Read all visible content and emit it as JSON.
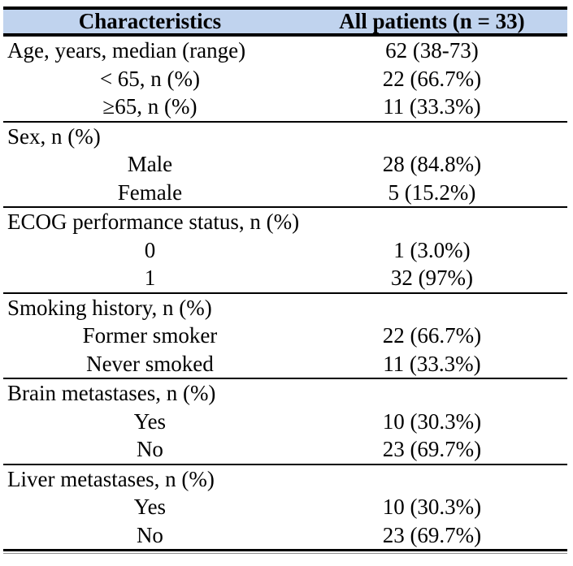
{
  "table": {
    "columns": [
      "Characteristics",
      "All patients (n = 33)"
    ],
    "rows": [
      {
        "label": "Age, years, median (range)",
        "value": "62 (38-73)"
      },
      {
        "label": "< 65, n (%)",
        "value": "22 (66.7%)"
      },
      {
        "label": "≥65, n (%)",
        "value": "11 (33.3%)"
      },
      {
        "label": "Sex, n (%)",
        "value": ""
      },
      {
        "label": "Male",
        "value": "28 (84.8%)"
      },
      {
        "label": "Female",
        "value": "5 (15.2%)"
      },
      {
        "label": "ECOG performance status, n (%)",
        "value": ""
      },
      {
        "label": "0",
        "value": "1 (3.0%)"
      },
      {
        "label": "1",
        "value": "32 (97%)"
      },
      {
        "label": "Smoking history, n (%)",
        "value": ""
      },
      {
        "label": "Former smoker",
        "value": "22 (66.7%)"
      },
      {
        "label": "Never smoked",
        "value": "11 (33.3%)"
      },
      {
        "label": "Brain metastases, n (%)",
        "value": ""
      },
      {
        "label": "Yes",
        "value": "10 (30.3%)"
      },
      {
        "label": "No",
        "value": "23 (69.7%)"
      },
      {
        "label": "Liver metastases, n (%)",
        "value": ""
      },
      {
        "label": "Yes",
        "value": "10 (30.3%)"
      },
      {
        "label": "No",
        "value": "23 (69.7%)"
      }
    ],
    "colors": {
      "header_bg": "#c0d3ee",
      "rule": "#000000",
      "thin_rule": "#8f8f8f"
    }
  }
}
